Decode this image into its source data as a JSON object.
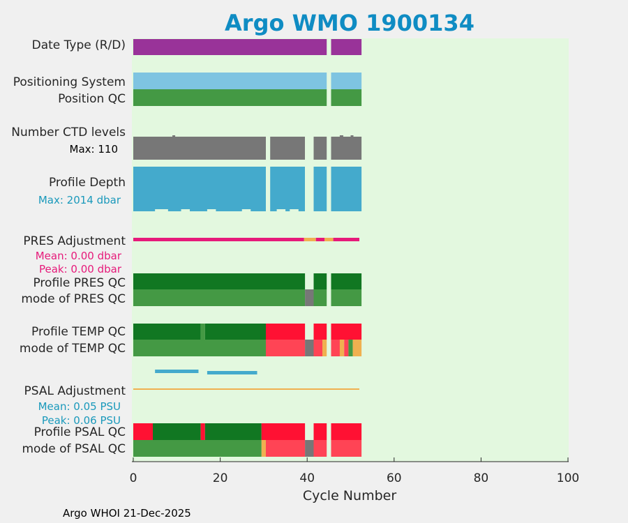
{
  "chart_data": {
    "type": "bar",
    "title": "Argo WMO 1900134",
    "xlabel": "Cycle Number",
    "xlim": [
      0,
      100
    ],
    "xticks": [
      0,
      20,
      40,
      60,
      80,
      100
    ],
    "footer": "Argo WHOI 21-Dec-2025",
    "row_labels": [
      {
        "key": "date_type",
        "text": "Date Type (R/D)"
      },
      {
        "key": "positioning_system",
        "text": "Positioning System"
      },
      {
        "key": "position_qc",
        "text": "Position QC"
      },
      {
        "key": "ctd_levels",
        "text": "Number CTD levels"
      },
      {
        "key": "profile_depth",
        "text": "Profile Depth"
      },
      {
        "key": "pres_adjustment",
        "text": "PRES Adjustment"
      },
      {
        "key": "profile_pres_qc",
        "text": "Profile PRES QC"
      },
      {
        "key": "mode_pres_qc",
        "text": "mode of PRES QC"
      },
      {
        "key": "profile_temp_qc",
        "text": "Profile TEMP QC"
      },
      {
        "key": "mode_temp_qc",
        "text": "mode of TEMP QC"
      },
      {
        "key": "psal_adjustment",
        "text": "PSAL Adjustment"
      },
      {
        "key": "profile_psal_qc",
        "text": "Profile PSAL QC"
      },
      {
        "key": "mode_psal_qc",
        "text": "mode of PSAL QC"
      }
    ],
    "annotations": {
      "ctd_max": "Max: 110",
      "depth_max": "Max: 2014 dbar",
      "pres_mean": "Mean: 0.00 dbar",
      "pres_peak": "Peak: 0.00 dbar",
      "psal_mean": "Mean: 0.05 PSU",
      "psal_peak": "Peak: 0.06 PSU"
    },
    "colors": {
      "plot_bg": "#e3f8df",
      "title": "#0f8cc3",
      "purple": "#993399",
      "light_blue": "#7ec4e1",
      "green": "#449944",
      "dark_green": "#117722",
      "gray": "#777777",
      "cyan": "#44aacc",
      "magenta": "#e61a7a",
      "orange": "#f0b050",
      "red": "#ff1133",
      "light_red": "#ff4455",
      "pres_note": "#e61a7a",
      "psal_note": "#1a99bb"
    },
    "series": [
      {
        "name": "Date Type (R/D)",
        "segments": [
          [
            0,
            44.5,
            "purple"
          ],
          [
            45.5,
            52.5,
            "purple"
          ]
        ]
      },
      {
        "name": "Positioning System",
        "segments": [
          [
            0,
            44.5,
            "light_blue"
          ],
          [
            45.5,
            52.5,
            "light_blue"
          ]
        ]
      },
      {
        "name": "Position QC",
        "segments": [
          [
            0,
            44.5,
            "green"
          ],
          [
            45.5,
            52.5,
            "green"
          ]
        ]
      },
      {
        "name": "Number CTD levels",
        "max": 110,
        "segments": [
          [
            0,
            30.5,
            "gray"
          ],
          [
            31.5,
            39.5,
            "gray"
          ],
          [
            41.5,
            44.5,
            "gray"
          ],
          [
            45.5,
            52.5,
            "gray"
          ]
        ]
      },
      {
        "name": "Profile Depth",
        "max_dbar": 2014,
        "segments": [
          [
            0,
            30.5,
            "cyan"
          ],
          [
            31.5,
            39.5,
            "cyan"
          ],
          [
            41.5,
            44.5,
            "cyan"
          ],
          [
            45.5,
            52.5,
            "cyan"
          ]
        ]
      },
      {
        "name": "PRES Adjustment",
        "mean_dbar": 0.0,
        "peak_dbar": 0.0,
        "segments": [
          [
            0,
            39.3,
            "magenta"
          ],
          [
            39.3,
            42.0,
            "orange"
          ],
          [
            42.0,
            44.0,
            "magenta"
          ],
          [
            44.0,
            46.0,
            "orange"
          ],
          [
            46.0,
            52.0,
            "magenta"
          ]
        ]
      },
      {
        "name": "Profile PRES QC",
        "segments": [
          [
            0,
            39.5,
            "dark_green"
          ],
          [
            41.5,
            44.5,
            "dark_green"
          ],
          [
            45.5,
            52.5,
            "dark_green"
          ]
        ]
      },
      {
        "name": "mode of PRES QC",
        "segments": [
          [
            0,
            39.5,
            "green"
          ],
          [
            39.5,
            41.5,
            "gray"
          ],
          [
            41.5,
            44.5,
            "green"
          ],
          [
            45.5,
            52.5,
            "green"
          ]
        ]
      },
      {
        "name": "Profile TEMP QC",
        "segments": [
          [
            0,
            15.5,
            "dark_green"
          ],
          [
            15.5,
            16.5,
            "green"
          ],
          [
            16.5,
            30.5,
            "dark_green"
          ],
          [
            30.5,
            39.5,
            "red"
          ],
          [
            41.5,
            44.5,
            "red"
          ],
          [
            45.5,
            52.5,
            "red"
          ]
        ]
      },
      {
        "name": "mode of TEMP QC",
        "segments": [
          [
            0,
            30.5,
            "green"
          ],
          [
            30.5,
            39.5,
            "light_red"
          ],
          [
            39.5,
            41.5,
            "gray"
          ],
          [
            41.5,
            43.5,
            "light_red"
          ],
          [
            43.5,
            44.5,
            "orange"
          ],
          [
            45.5,
            47.5,
            "light_red"
          ],
          [
            47.5,
            48.5,
            "orange"
          ],
          [
            48.5,
            49.5,
            "light_red"
          ],
          [
            49.5,
            50.5,
            "green"
          ],
          [
            50.5,
            52.5,
            "orange"
          ]
        ]
      },
      {
        "name": "PSAL Adjustment",
        "mean_psu": 0.05,
        "peak_psu": 0.06,
        "segments": [
          [
            0,
            52,
            "orange"
          ]
        ]
      },
      {
        "name": "Profile PSAL QC",
        "segments": [
          [
            0,
            4.5,
            "red"
          ],
          [
            4.5,
            15.5,
            "dark_green"
          ],
          [
            15.5,
            16.5,
            "red"
          ],
          [
            16.5,
            29.5,
            "dark_green"
          ],
          [
            29.5,
            39.5,
            "red"
          ],
          [
            41.5,
            44.5,
            "red"
          ],
          [
            45.5,
            52.5,
            "red"
          ]
        ]
      },
      {
        "name": "mode of PSAL QC",
        "segments": [
          [
            0,
            29.5,
            "green"
          ],
          [
            29.5,
            30.5,
            "orange"
          ],
          [
            30.5,
            39.5,
            "light_red"
          ],
          [
            39.5,
            41.5,
            "gray"
          ],
          [
            41.5,
            44.5,
            "light_red"
          ],
          [
            45.5,
            52.5,
            "light_red"
          ]
        ]
      }
    ]
  }
}
